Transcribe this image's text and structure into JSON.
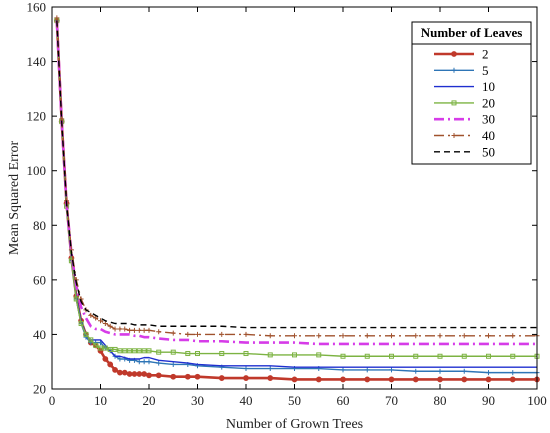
{
  "chart_data": {
    "type": "line",
    "xlabel": "Number of Grown Trees",
    "ylabel": "Mean Squared Error",
    "xlim": [
      0,
      100
    ],
    "ylim": [
      20,
      160
    ],
    "xticks": [
      0,
      10,
      20,
      30,
      40,
      50,
      60,
      70,
      80,
      90,
      100
    ],
    "yticks": [
      20,
      40,
      60,
      80,
      100,
      120,
      140,
      160
    ],
    "grid": false,
    "legend": {
      "title": "Number of Leaves",
      "placement": "top-right"
    },
    "x": [
      1,
      2,
      3,
      4,
      5,
      6,
      7,
      8,
      9,
      10,
      11,
      12,
      13,
      14,
      15,
      16,
      17,
      18,
      19,
      20,
      22,
      25,
      28,
      30,
      35,
      40,
      45,
      50,
      55,
      60,
      65,
      70,
      75,
      80,
      85,
      90,
      95,
      100
    ],
    "series": [
      {
        "name": "2",
        "color": "#c0392b",
        "style": "solid-circle",
        "values": [
          155,
          118,
          88,
          68,
          54,
          45,
          40,
          37,
          36,
          34,
          31,
          29,
          27,
          26,
          26,
          25.5,
          25.5,
          25.5,
          25.5,
          25,
          25,
          24.5,
          24.5,
          24.5,
          24,
          24,
          24,
          23.5,
          23.5,
          23.5,
          23.5,
          23.5,
          23.5,
          23.5,
          23.5,
          23.5,
          23.5,
          23.5
        ]
      },
      {
        "name": "5",
        "color": "#2e75b6",
        "style": "solid-plus",
        "values": [
          155,
          118,
          87,
          67,
          53,
          44,
          39,
          37,
          37,
          37,
          35,
          34,
          32,
          31,
          31,
          30.5,
          30.5,
          30,
          30,
          30,
          29.5,
          29,
          29,
          28.5,
          28,
          27.5,
          27.5,
          27.5,
          27.5,
          27,
          27,
          27,
          26.5,
          26.5,
          26.5,
          26,
          26,
          26
        ]
      },
      {
        "name": "10",
        "color": "#1f2fcf",
        "style": "solid",
        "values": [
          155,
          118,
          87,
          67,
          54,
          45,
          40,
          38,
          38,
          38,
          36,
          34,
          32,
          32,
          31.5,
          31,
          31,
          31,
          31.5,
          31.5,
          30.5,
          30,
          29.5,
          29,
          28.5,
          28.5,
          28.5,
          28,
          28,
          28,
          28,
          28,
          28,
          28,
          28,
          28,
          28,
          28
        ]
      },
      {
        "name": "20",
        "color": "#7cb342",
        "style": "solid-square",
        "values": [
          155,
          118,
          87,
          67,
          53,
          44,
          40,
          38,
          36,
          35,
          35,
          34.5,
          34.5,
          34,
          34,
          34,
          34,
          34,
          34,
          34,
          33.5,
          33.5,
          33,
          33,
          33,
          33,
          32.5,
          32.5,
          32.5,
          32,
          32,
          32,
          32,
          32,
          32,
          32,
          32,
          32
        ]
      },
      {
        "name": "30",
        "color": "#d63ce8",
        "style": "dashdot",
        "values": [
          155,
          118,
          88,
          70,
          58,
          50,
          46,
          43,
          42,
          42,
          41,
          40.5,
          40,
          40,
          40,
          40,
          39.5,
          39.5,
          39,
          39,
          38.5,
          38,
          38,
          37.5,
          37.5,
          37,
          37,
          37,
          36.5,
          36.5,
          36.5,
          36.5,
          36.5,
          36.5,
          36.5,
          36.5,
          36.5,
          36.5
        ]
      },
      {
        "name": "40",
        "color": "#a0522d",
        "style": "dashdot-plus",
        "values": [
          156,
          119,
          89,
          71,
          60,
          53,
          49,
          47,
          46,
          45,
          44,
          43,
          42,
          42,
          42,
          41.5,
          41.5,
          41.5,
          41.5,
          41.5,
          41,
          40.5,
          40,
          40,
          40,
          40,
          39.5,
          39.5,
          39.5,
          39.5,
          39.5,
          39.5,
          39.5,
          39.5,
          39.5,
          39.5,
          39.5,
          39.5
        ]
      },
      {
        "name": "50",
        "color": "#000000",
        "style": "dashed",
        "values": [
          155,
          118,
          88,
          70,
          59,
          52,
          49,
          48,
          47,
          46,
          45,
          44.5,
          44,
          44,
          44,
          44,
          43.5,
          43.5,
          43.5,
          43.5,
          43,
          43,
          43,
          43,
          43,
          42.5,
          42.5,
          42.5,
          42.5,
          42.5,
          42.5,
          42.5,
          42.5,
          42.5,
          42.5,
          42.5,
          42.5,
          42.5
        ]
      }
    ]
  }
}
